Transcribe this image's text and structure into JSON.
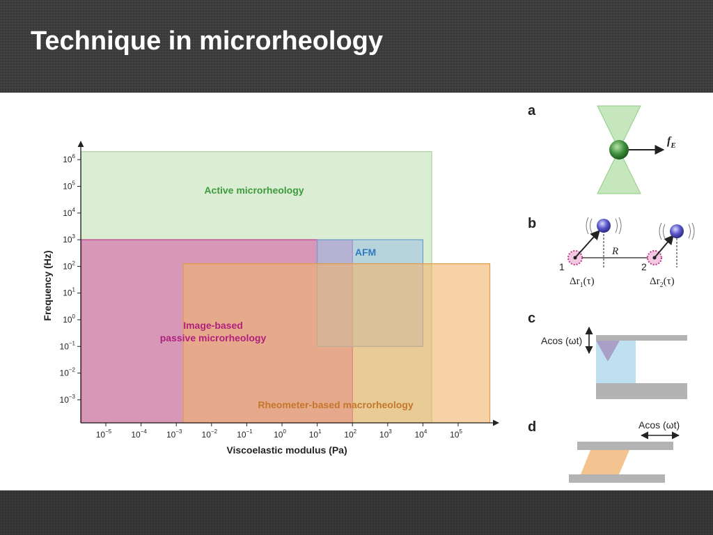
{
  "slide": {
    "title": "Technique in microrheology"
  },
  "chart_data": {
    "type": "area",
    "xlabel": "Viscoelastic modulus (Pa)",
    "ylabel": "Frequency (Hz)",
    "x_scale": "log",
    "y_scale": "log",
    "x_ticks": [
      {
        "exp": -5,
        "label": "10",
        "sup": "−5"
      },
      {
        "exp": -4,
        "label": "10",
        "sup": "−4"
      },
      {
        "exp": -3,
        "label": "10",
        "sup": "−3"
      },
      {
        "exp": -2,
        "label": "10",
        "sup": "−2"
      },
      {
        "exp": -1,
        "label": "10",
        "sup": "−1"
      },
      {
        "exp": 0,
        "label": "10",
        "sup": "0"
      },
      {
        "exp": 1,
        "label": "10",
        "sup": "1"
      },
      {
        "exp": 2,
        "label": "10",
        "sup": "2"
      },
      {
        "exp": 3,
        "label": "10",
        "sup": "3"
      },
      {
        "exp": 4,
        "label": "10",
        "sup": "4"
      },
      {
        "exp": 5,
        "label": "10",
        "sup": "5"
      }
    ],
    "y_ticks": [
      {
        "exp": -3,
        "label": "10",
        "sup": "−3"
      },
      {
        "exp": -2,
        "label": "10",
        "sup": "−2"
      },
      {
        "exp": -1,
        "label": "10",
        "sup": "−1"
      },
      {
        "exp": 0,
        "label": "10",
        "sup": "0"
      },
      {
        "exp": 1,
        "label": "10",
        "sup": "1"
      },
      {
        "exp": 2,
        "label": "10",
        "sup": "2"
      },
      {
        "exp": 3,
        "label": "10",
        "sup": "3"
      },
      {
        "exp": 4,
        "label": "10",
        "sup": "4"
      },
      {
        "exp": 5,
        "label": "10",
        "sup": "5"
      },
      {
        "exp": 6,
        "label": "10",
        "sup": "6"
      }
    ],
    "regions": [
      {
        "label": "Active microrheology",
        "x_range": [
          -5.7,
          4.25
        ],
        "y_range": [
          -4.0,
          6.3
        ],
        "fill": "#cfe8c6",
        "stroke": "#a6d39a",
        "text_color": "#3c9a3c"
      },
      {
        "label": "Image-based passive microrheology",
        "x_range": [
          -5.7,
          2.0
        ],
        "y_range": [
          -4.0,
          3.0
        ],
        "fill": "#d45fa5",
        "stroke": "#c2388a",
        "text_color": "#b0207d"
      },
      {
        "label": "AFM",
        "x_range": [
          1.0,
          4.0
        ],
        "y_range": [
          -1.0,
          3.0
        ],
        "fill": "#9fc3e2",
        "stroke": "#6aa0d0",
        "text_color": "#2e79c4"
      },
      {
        "label": "Rheometer-based macrorheology",
        "x_range": [
          -2.8,
          5.9
        ],
        "y_range": [
          -4.0,
          2.1
        ],
        "fill": "#f1b46c",
        "stroke": "#e19a45",
        "text_color": "#c4772a"
      }
    ]
  },
  "schematics": {
    "a": {
      "label": "a",
      "force": "f",
      "force_sub": "E"
    },
    "b": {
      "label": "b",
      "distance": "R",
      "p1": "1",
      "p2": "2",
      "dr": "Δr",
      "tau": "(τ)",
      "sub1": "1",
      "sub2": "2"
    },
    "c": {
      "label": "c",
      "osc": "Acos (ωt)"
    },
    "d": {
      "label": "d",
      "osc": "Acos (ωt)"
    }
  }
}
